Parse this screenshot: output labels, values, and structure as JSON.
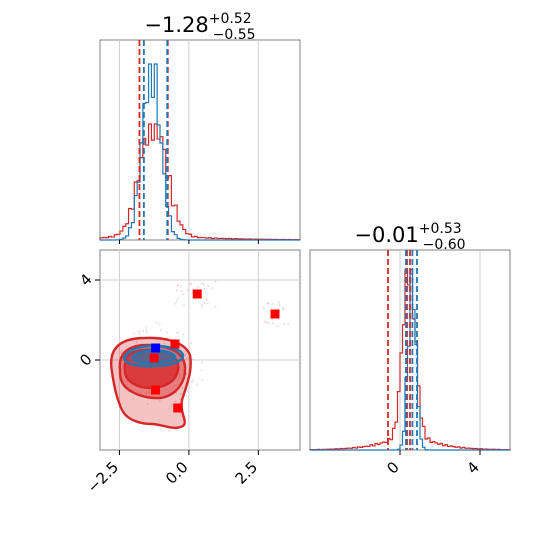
{
  "chart_data": {
    "type": "corner",
    "colors": {
      "blue": "#1f77b4",
      "red": "#d62728",
      "grid": "#cfcfcf",
      "frame": "#808080"
    },
    "titles": [
      {
        "value": "−1.28",
        "sup": "+0.52",
        "sub": "−0.55"
      },
      {
        "value": "−0.01",
        "sup": "+0.53",
        "sub": "−0.60"
      }
    ],
    "x_range": [
      -3.2,
      4.0
    ],
    "y_range": [
      -4.5,
      5.5
    ],
    "p2_range": [
      -4.5,
      5.5
    ],
    "x_ticks": [
      -2.5,
      0.0,
      2.5
    ],
    "x_tick_labels": [
      "−2.5",
      "0.0",
      "2.5"
    ],
    "y_ticks": [
      0,
      4
    ],
    "y_tick_labels": [
      "0",
      "4"
    ],
    "p2_ticks": [
      0,
      4
    ],
    "p2_tick_labels": [
      "0",
      "4"
    ],
    "hist1_quantiles": {
      "red": [
        -1.78,
        -0.76
      ],
      "blue": [
        -1.62,
        -0.78
      ],
      "median": -0.77
    },
    "hist2_quantiles": {
      "red": [
        -0.6,
        0.35,
        0.5
      ],
      "blue": [
        0.3,
        0.62,
        0.85
      ]
    },
    "points": [
      {
        "x": 0.3,
        "y": 3.3,
        "color": "red"
      },
      {
        "x": 3.1,
        "y": 2.3,
        "color": "red"
      },
      {
        "x": -0.5,
        "y": 0.8,
        "color": "red"
      },
      {
        "x": -1.25,
        "y": 0.1,
        "color": "red"
      },
      {
        "x": -1.2,
        "y": -1.5,
        "color": "red"
      },
      {
        "x": -0.4,
        "y": -2.4,
        "color": "red"
      },
      {
        "x": -1.2,
        "y": 0.6,
        "color": "blue"
      }
    ]
  }
}
